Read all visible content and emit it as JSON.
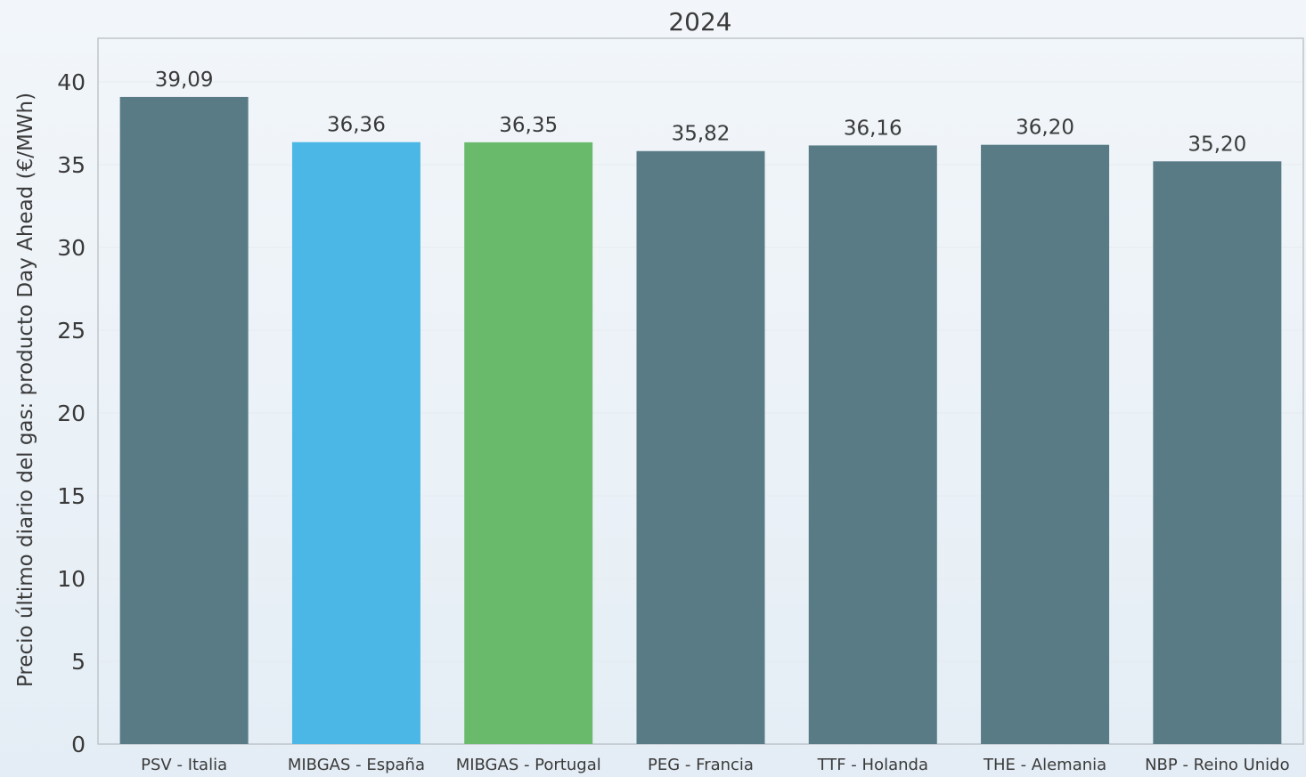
{
  "chart_data": {
    "type": "bar",
    "title": "2024",
    "xlabel": "",
    "ylabel": "Precio último diario del gas: producto Day Ahead (€/MWh)",
    "categories": [
      "PSV - Italia",
      "MIBGAS - España",
      "MIBGAS - Portugal",
      "PEG - Francia",
      "TTF - Holanda",
      "THE - Alemania",
      "NBP - Reino Unido"
    ],
    "values": [
      39.09,
      36.36,
      36.35,
      35.82,
      36.16,
      36.2,
      35.2
    ],
    "value_labels": [
      "39,09",
      "36,36",
      "36,35",
      "35,82",
      "36,16",
      "36,20",
      "35,20"
    ],
    "bar_colors": [
      "#587b86",
      "#4bb7e6",
      "#69ba6b",
      "#587b86",
      "#587b86",
      "#587b86",
      "#587b86"
    ],
    "ylim": [
      0,
      42
    ],
    "yticks": [
      0,
      5,
      10,
      15,
      20,
      25,
      30,
      35,
      40
    ],
    "grid": true,
    "legend": "none"
  }
}
